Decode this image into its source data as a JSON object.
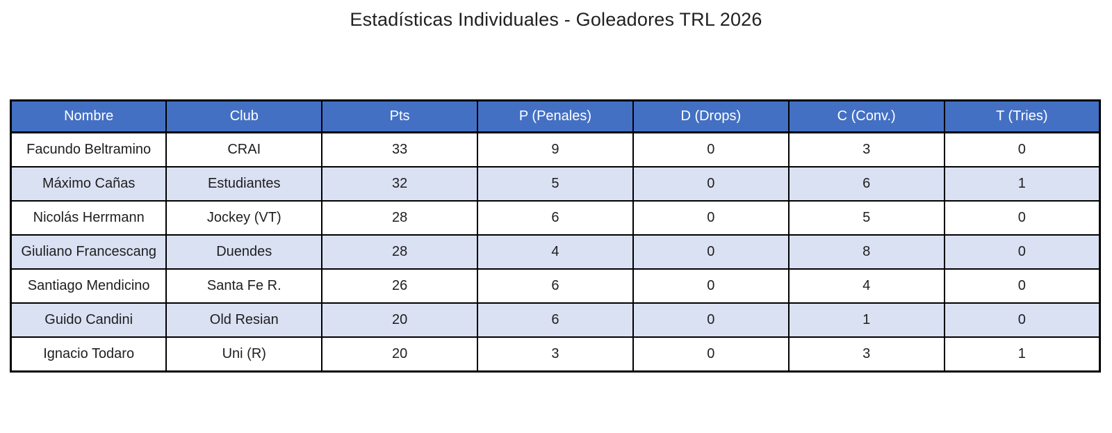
{
  "title": "Estadísticas Individuales - Goleadores TRL 2026",
  "colors": {
    "header_bg": "#4470C4",
    "header_text": "#FFFFFF",
    "band_bg": "#DAE1F3",
    "row_bg": "#FFFFFF",
    "border": "#000000",
    "text": "#1E1E1E"
  },
  "table": {
    "headers": [
      "Nombre",
      "Club",
      "Pts",
      "P (Penales)",
      "D (Drops)",
      "C (Conv.)",
      "T (Tries)"
    ],
    "rows": [
      {
        "nombre": "Facundo Beltramino",
        "club": "CRAI",
        "pts": "33",
        "p": "9",
        "d": "0",
        "c": "3",
        "t": "0"
      },
      {
        "nombre": "Máximo Cañas",
        "club": "Estudiantes",
        "pts": "32",
        "p": "5",
        "d": "0",
        "c": "6",
        "t": "1"
      },
      {
        "nombre": "Nicolás Herrmann",
        "club": "Jockey (VT)",
        "pts": "28",
        "p": "6",
        "d": "0",
        "c": "5",
        "t": "0"
      },
      {
        "nombre": "Giuliano Francescang",
        "club": "Duendes",
        "pts": "28",
        "p": "4",
        "d": "0",
        "c": "8",
        "t": "0"
      },
      {
        "nombre": "Santiago Mendicino",
        "club": "Santa Fe R.",
        "pts": "26",
        "p": "6",
        "d": "0",
        "c": "4",
        "t": "0"
      },
      {
        "nombre": "Guido Candini",
        "club": "Old Resian",
        "pts": "20",
        "p": "6",
        "d": "0",
        "c": "1",
        "t": "0"
      },
      {
        "nombre": "Ignacio Todaro",
        "club": "Uni (R)",
        "pts": "20",
        "p": "3",
        "d": "0",
        "c": "3",
        "t": "1"
      }
    ]
  },
  "chart_data": {
    "type": "table",
    "title": "Estadísticas Individuales - Goleadores TRL 2026",
    "columns": [
      "Nombre",
      "Club",
      "Pts",
      "P (Penales)",
      "D (Drops)",
      "C (Conv.)",
      "T (Tries)"
    ],
    "rows": [
      [
        "Facundo Beltramino",
        "CRAI",
        33,
        9,
        0,
        3,
        0
      ],
      [
        "Máximo Cañas",
        "Estudiantes",
        32,
        5,
        0,
        6,
        1
      ],
      [
        "Nicolás Herrmann",
        "Jockey (VT)",
        28,
        6,
        0,
        5,
        0
      ],
      [
        "Giuliano Francescang",
        "Duendes",
        28,
        4,
        0,
        8,
        0
      ],
      [
        "Santiago Mendicino",
        "Santa Fe R.",
        26,
        6,
        0,
        4,
        0
      ],
      [
        "Guido Candini",
        "Old Resian",
        20,
        6,
        0,
        1,
        0
      ],
      [
        "Ignacio Todaro",
        "Uni (R)",
        20,
        3,
        0,
        3,
        1
      ]
    ],
    "layout": {
      "header_style": "blue-banded",
      "banding": "alternate-lavender",
      "grid": true
    }
  }
}
